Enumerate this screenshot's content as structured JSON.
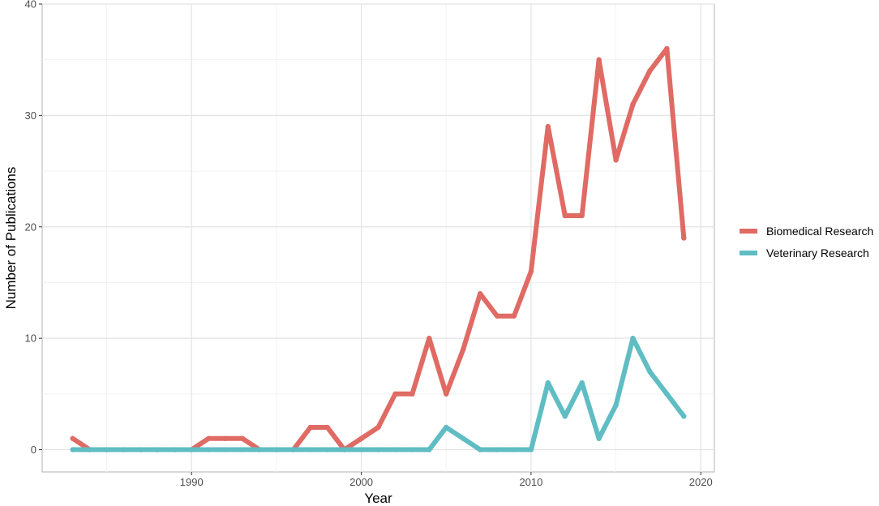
{
  "chart_data": {
    "type": "line",
    "title": "",
    "xlabel": "Year",
    "ylabel": "Number of Publications",
    "xlim": [
      1981.2,
      2020.8
    ],
    "ylim": [
      -2,
      40
    ],
    "x_ticks": [
      1990,
      2000,
      2010,
      2020
    ],
    "y_ticks": [
      0,
      10,
      20,
      30,
      40
    ],
    "grid": true,
    "legend_position": "right",
    "x": [
      1983,
      1984,
      1985,
      1986,
      1987,
      1988,
      1989,
      1990,
      1991,
      1992,
      1993,
      1994,
      1995,
      1996,
      1997,
      1998,
      1999,
      2000,
      2001,
      2002,
      2003,
      2004,
      2005,
      2006,
      2007,
      2008,
      2009,
      2010,
      2011,
      2012,
      2013,
      2014,
      2015,
      2016,
      2017,
      2018,
      2019
    ],
    "series": [
      {
        "name": "Biomedical Research",
        "color": "#E06A64",
        "values": [
          1,
          0,
          0,
          0,
          0,
          0,
          0,
          0,
          1,
          1,
          1,
          0,
          0,
          0,
          2,
          2,
          0,
          1,
          2,
          5,
          5,
          10,
          5,
          9,
          14,
          12,
          12,
          16,
          29,
          21,
          21,
          35,
          26,
          31,
          34,
          36,
          19
        ]
      },
      {
        "name": "Veterinary Research",
        "color": "#5FBDC3",
        "values": [
          0,
          0,
          0,
          0,
          0,
          0,
          0,
          0,
          0,
          0,
          0,
          0,
          0,
          0,
          0,
          0,
          0,
          0,
          0,
          0,
          0,
          0,
          2,
          1,
          0,
          0,
          0,
          0,
          6,
          3,
          6,
          1,
          4,
          10,
          7,
          5,
          3
        ]
      }
    ]
  }
}
